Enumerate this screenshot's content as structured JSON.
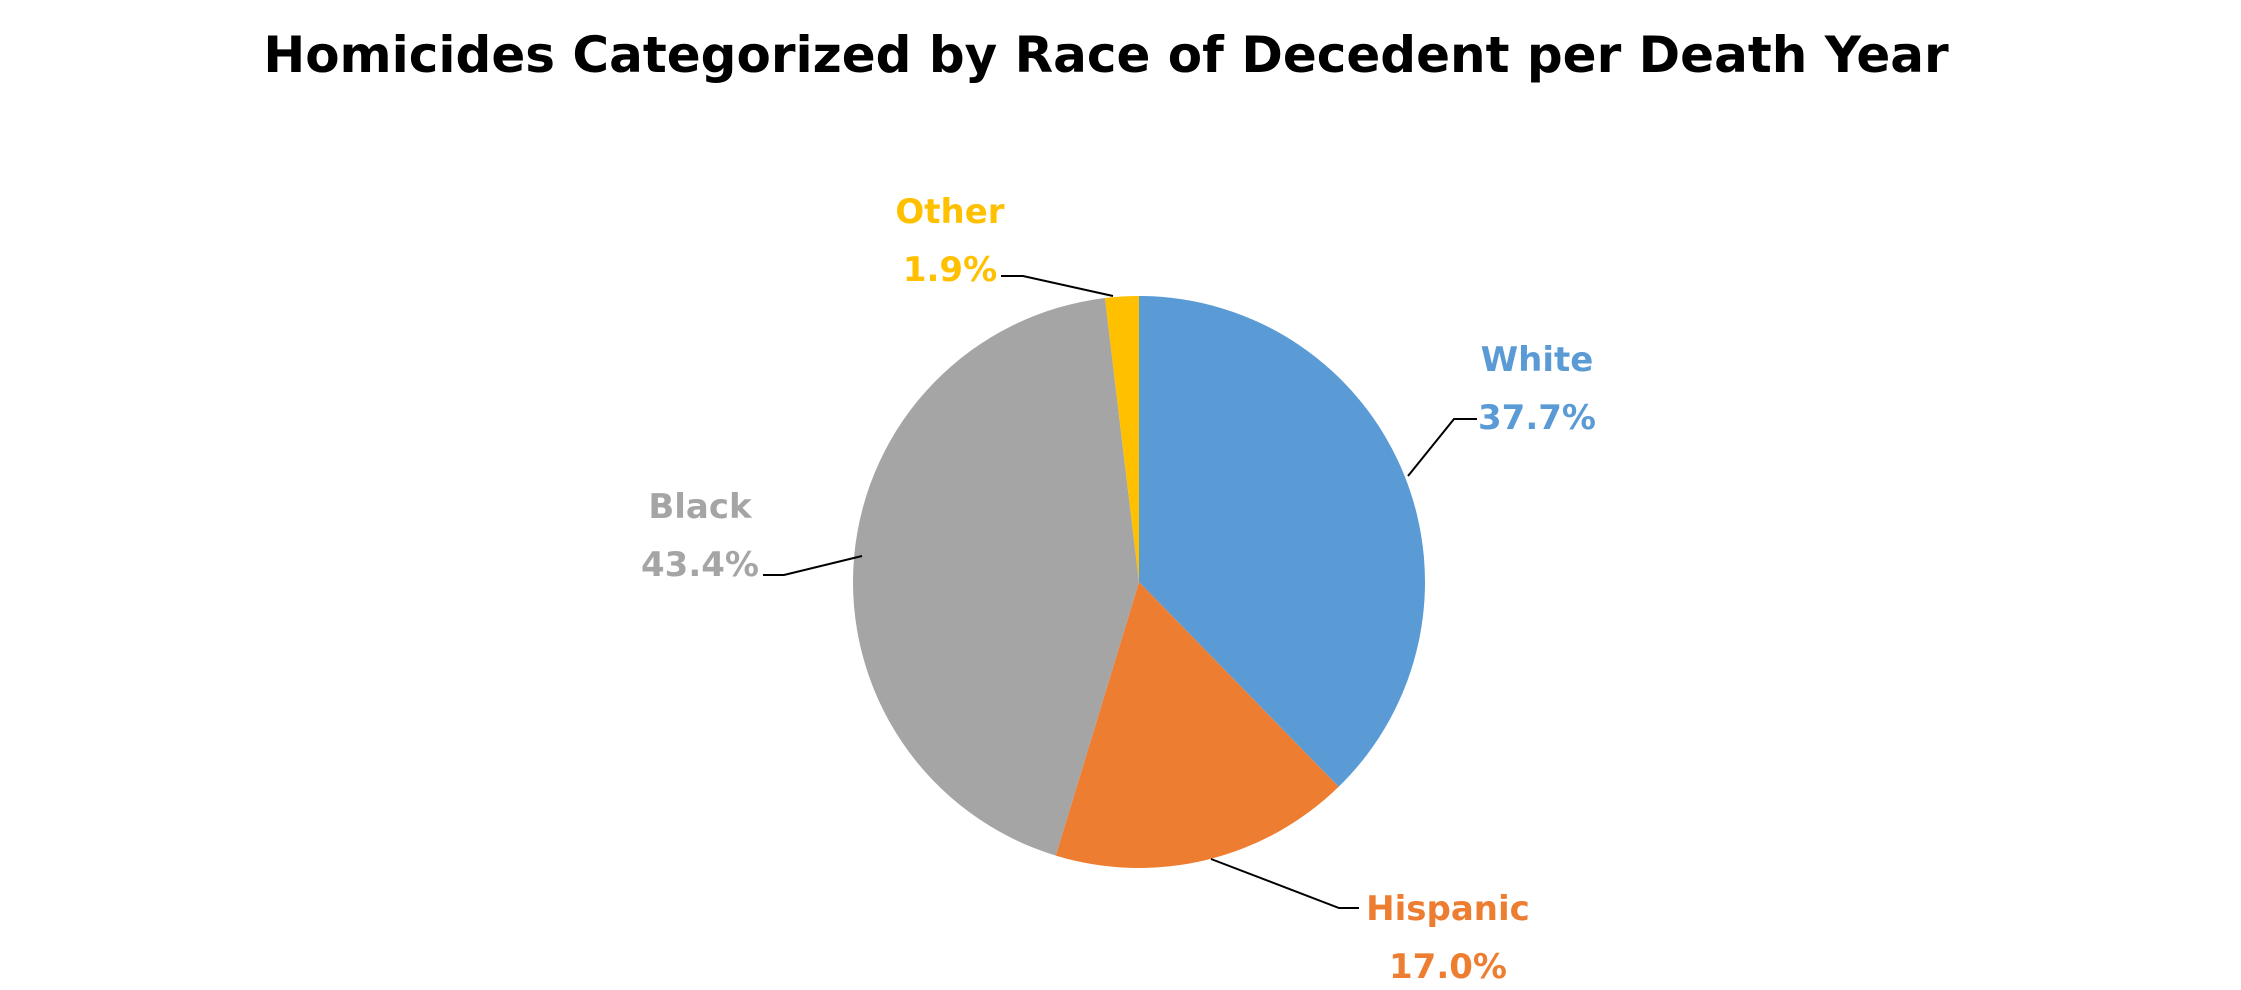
{
  "chart_data": {
    "type": "pie",
    "title": "Homicides Categorized by Race of Decedent per Death Year",
    "start_angle": "12 o'clock, clockwise",
    "legend": "none (data labels with leader lines)",
    "slices": [
      {
        "name": "White",
        "value": 37.7,
        "label": "37.7%",
        "color": "#5B9BD5"
      },
      {
        "name": "Hispanic",
        "value": 17.0,
        "label": "17.0%",
        "color": "#ED7D31"
      },
      {
        "name": "Black",
        "value": 43.4,
        "label": "43.4%",
        "color": "#A5A5A5"
      },
      {
        "name": "Other",
        "value": 1.9,
        "label": "1.9%",
        "color": "#FFC000"
      }
    ]
  }
}
